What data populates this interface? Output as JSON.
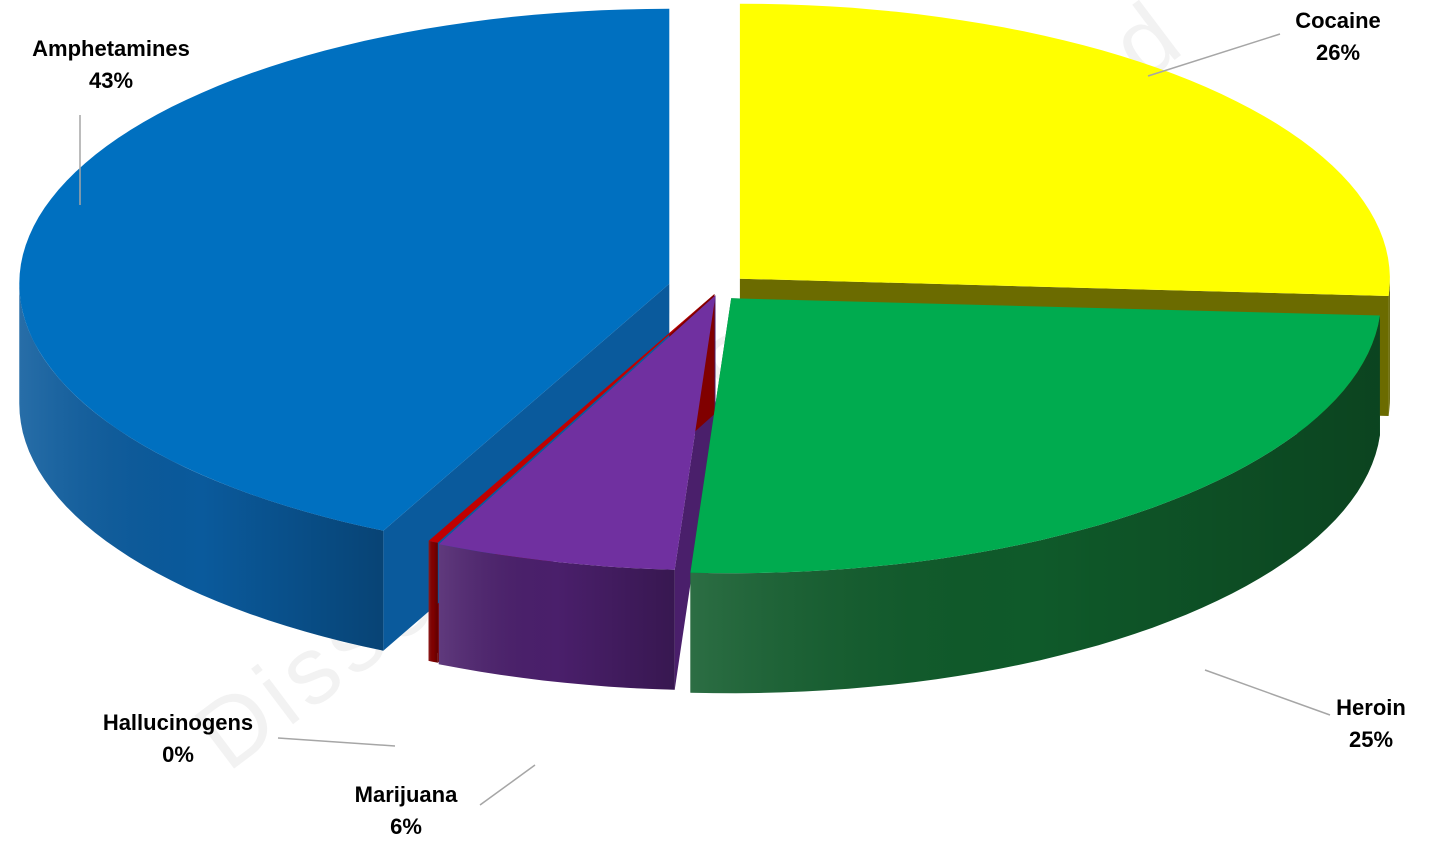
{
  "chart_data": {
    "type": "pie",
    "style": "3d-exploded",
    "title": "",
    "slices": [
      {
        "name": "Cocaine",
        "value": 26,
        "label": "26%",
        "color": "#FFFF00",
        "side_color": "#6B6B00"
      },
      {
        "name": "Heroin",
        "value": 25,
        "label": "25%",
        "color": "#00AB4F",
        "side_color": "#0F5A2A"
      },
      {
        "name": "Marijuana",
        "value": 6,
        "label": "6%",
        "color": "#7030A0",
        "side_color": "#4A1F6B"
      },
      {
        "name": "Hallucinogens",
        "value": 0,
        "label": "0%",
        "color": "#C00000",
        "side_color": "#800000"
      },
      {
        "name": "Amphetamines",
        "value": 43,
        "label": "43%",
        "color": "#0070C0",
        "side_color": "#0A5A9C"
      }
    ],
    "legend": "none",
    "data_labels": "category-and-percent-with-leader-lines"
  },
  "watermark": {
    "text": "Dissemination Prohibited"
  }
}
